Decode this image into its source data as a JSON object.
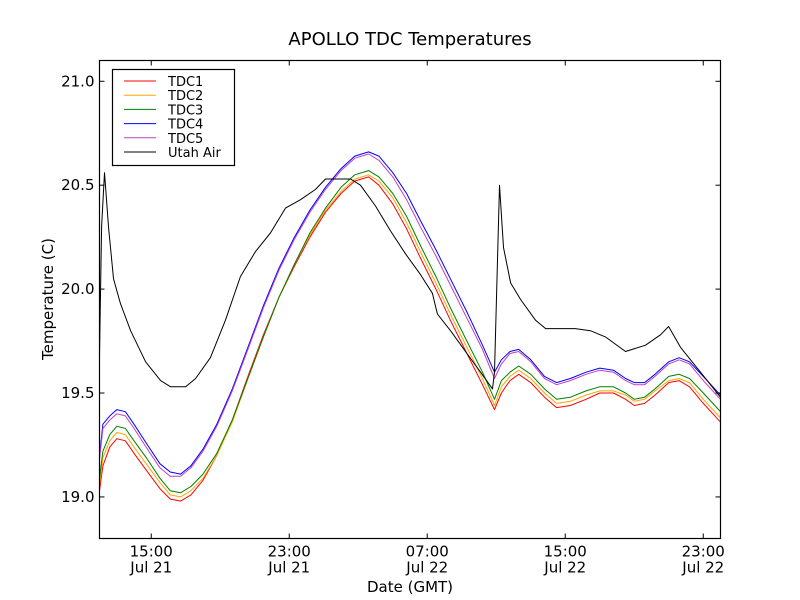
{
  "chart_data": {
    "type": "line",
    "title": "APOLLO TDC Temperatures",
    "xlabel": "Date (GMT)",
    "ylabel": "Temperature (C)",
    "x_units": "hours since Jul 21 00:00 GMT",
    "xlim": [
      12,
      48
    ],
    "ylim": [
      18.8,
      21.1
    ],
    "grid": false,
    "legend_position": "top-left",
    "x_ticks": [
      {
        "value": 15,
        "label_time": "15:00",
        "label_date": "Jul 21"
      },
      {
        "value": 23,
        "label_time": "23:00",
        "label_date": "Jul 21"
      },
      {
        "value": 31,
        "label_time": "07:00",
        "label_date": "Jul 22"
      },
      {
        "value": 39,
        "label_time": "15:00",
        "label_date": "Jul 22"
      },
      {
        "value": 47,
        "label_time": "23:00",
        "label_date": "Jul 22"
      }
    ],
    "y_ticks": [
      {
        "value": 19.0,
        "label": "19.0"
      },
      {
        "value": 19.5,
        "label": "19.5"
      },
      {
        "value": 20.0,
        "label": "20.0"
      },
      {
        "value": 20.5,
        "label": "20.5"
      },
      {
        "value": 21.0,
        "label": "21.0"
      }
    ],
    "series": [
      {
        "name": "TDC1",
        "color": "#ff0000",
        "x": [
          12.0,
          12.2,
          12.6,
          13.0,
          13.5,
          14.0,
          14.7,
          15.5,
          16.1,
          16.7,
          17.3,
          18.0,
          18.8,
          19.7,
          20.6,
          21.5,
          22.4,
          23.3,
          24.2,
          25.1,
          26.0,
          26.8,
          27.6,
          28.2,
          29.0,
          29.8,
          30.6,
          31.5,
          32.4,
          33.3,
          34.2,
          34.9,
          35.3,
          35.8,
          36.3,
          37.0,
          37.8,
          38.5,
          39.3,
          40.2,
          41.0,
          41.8,
          42.5,
          43.0,
          43.6,
          44.2,
          45.0,
          45.6,
          46.2,
          47.0,
          48.0
        ],
        "y": [
          19.03,
          19.15,
          19.24,
          19.28,
          19.27,
          19.21,
          19.13,
          19.04,
          18.99,
          18.98,
          19.01,
          19.08,
          19.2,
          19.37,
          19.58,
          19.78,
          19.96,
          20.11,
          20.25,
          20.37,
          20.46,
          20.52,
          20.54,
          20.5,
          20.41,
          20.29,
          20.15,
          20.0,
          19.84,
          19.69,
          19.54,
          19.42,
          19.5,
          19.56,
          19.59,
          19.55,
          19.48,
          19.43,
          19.44,
          19.47,
          19.5,
          19.5,
          19.47,
          19.44,
          19.45,
          19.49,
          19.55,
          19.56,
          19.53,
          19.45,
          19.36
        ]
      },
      {
        "name": "TDC2",
        "color": "#ffa500",
        "x": [
          12.0,
          12.2,
          12.6,
          13.0,
          13.5,
          14.0,
          14.7,
          15.5,
          16.1,
          16.7,
          17.3,
          18.0,
          18.8,
          19.7,
          20.6,
          21.5,
          22.4,
          23.3,
          24.2,
          25.1,
          26.0,
          26.8,
          27.6,
          28.2,
          29.0,
          29.8,
          30.6,
          31.5,
          32.4,
          33.3,
          34.2,
          34.9,
          35.3,
          35.8,
          36.3,
          37.0,
          37.8,
          38.5,
          39.3,
          40.2,
          41.0,
          41.8,
          42.5,
          43.0,
          43.6,
          44.2,
          45.0,
          45.6,
          46.2,
          47.0,
          48.0
        ],
        "y": [
          19.06,
          19.19,
          19.27,
          19.31,
          19.3,
          19.24,
          19.16,
          19.07,
          19.01,
          19.0,
          19.03,
          19.09,
          19.2,
          19.36,
          19.57,
          19.77,
          19.96,
          20.12,
          20.26,
          20.38,
          20.47,
          20.53,
          20.55,
          20.52,
          20.44,
          20.32,
          20.18,
          20.03,
          19.87,
          19.72,
          19.57,
          19.44,
          19.53,
          19.58,
          19.61,
          19.57,
          19.5,
          19.45,
          19.46,
          19.49,
          19.51,
          19.51,
          19.49,
          19.46,
          19.47,
          19.51,
          19.56,
          19.57,
          19.55,
          19.47,
          19.38
        ]
      },
      {
        "name": "TDC3",
        "color": "#008000",
        "x": [
          12.0,
          12.2,
          12.6,
          13.0,
          13.5,
          14.0,
          14.7,
          15.5,
          16.1,
          16.7,
          17.3,
          18.0,
          18.8,
          19.7,
          20.6,
          21.5,
          22.4,
          23.3,
          24.2,
          25.1,
          26.0,
          26.8,
          27.6,
          28.2,
          29.0,
          29.8,
          30.6,
          31.5,
          32.4,
          33.3,
          34.2,
          34.9,
          35.3,
          35.8,
          36.3,
          37.0,
          37.8,
          38.5,
          39.3,
          40.2,
          41.0,
          41.8,
          42.5,
          43.0,
          43.6,
          44.2,
          45.0,
          45.6,
          46.2,
          47.0,
          48.0
        ],
        "y": [
          19.09,
          19.22,
          19.3,
          19.34,
          19.33,
          19.27,
          19.19,
          19.09,
          19.03,
          19.02,
          19.05,
          19.11,
          19.21,
          19.37,
          19.57,
          19.77,
          19.96,
          20.12,
          20.27,
          20.39,
          20.49,
          20.55,
          20.57,
          20.54,
          20.46,
          20.35,
          20.21,
          20.06,
          19.9,
          19.75,
          19.6,
          19.47,
          19.56,
          19.6,
          19.63,
          19.59,
          19.52,
          19.47,
          19.48,
          19.51,
          19.53,
          19.53,
          19.5,
          19.47,
          19.48,
          19.52,
          19.58,
          19.59,
          19.57,
          19.5,
          19.41
        ]
      },
      {
        "name": "TDC4",
        "color": "#0000ff",
        "x": [
          12.0,
          12.2,
          12.6,
          13.0,
          13.5,
          14.0,
          14.7,
          15.5,
          16.1,
          16.7,
          17.3,
          18.0,
          18.8,
          19.7,
          20.6,
          21.5,
          22.4,
          23.3,
          24.2,
          25.1,
          26.0,
          26.8,
          27.6,
          28.2,
          29.0,
          29.8,
          30.6,
          31.5,
          32.4,
          33.3,
          34.2,
          34.9,
          35.3,
          35.8,
          36.3,
          37.0,
          37.8,
          38.5,
          39.3,
          40.2,
          41.0,
          41.8,
          42.5,
          43.0,
          43.6,
          44.2,
          45.0,
          45.6,
          46.2,
          47.0,
          48.0
        ],
        "y": [
          19.2,
          19.35,
          19.39,
          19.42,
          19.41,
          19.35,
          19.26,
          19.16,
          19.12,
          19.11,
          19.15,
          19.23,
          19.35,
          19.52,
          19.72,
          19.92,
          20.1,
          20.25,
          20.38,
          20.49,
          20.58,
          20.64,
          20.66,
          20.64,
          20.56,
          20.46,
          20.33,
          20.19,
          20.04,
          19.89,
          19.73,
          19.6,
          19.66,
          19.7,
          19.71,
          19.66,
          19.58,
          19.55,
          19.57,
          19.6,
          19.62,
          19.61,
          19.57,
          19.55,
          19.55,
          19.59,
          19.65,
          19.67,
          19.65,
          19.58,
          19.49
        ]
      },
      {
        "name": "TDC5",
        "color": "#bf40bf",
        "x": [
          12.0,
          12.2,
          12.6,
          13.0,
          13.5,
          14.0,
          14.7,
          15.5,
          16.1,
          16.7,
          17.3,
          18.0,
          18.8,
          19.7,
          20.6,
          21.5,
          22.4,
          23.3,
          24.2,
          25.1,
          26.0,
          26.8,
          27.6,
          28.2,
          29.0,
          29.8,
          30.6,
          31.5,
          32.4,
          33.3,
          34.2,
          34.9,
          35.3,
          35.8,
          36.3,
          37.0,
          37.8,
          38.5,
          39.3,
          40.2,
          41.0,
          41.8,
          42.5,
          43.0,
          43.6,
          44.2,
          45.0,
          45.6,
          46.2,
          47.0,
          48.0
        ],
        "y": [
          19.18,
          19.33,
          19.37,
          19.4,
          19.39,
          19.33,
          19.24,
          19.14,
          19.1,
          19.1,
          19.14,
          19.22,
          19.34,
          19.51,
          19.71,
          19.91,
          20.09,
          20.24,
          20.37,
          20.48,
          20.57,
          20.63,
          20.65,
          20.62,
          20.54,
          20.43,
          20.3,
          20.16,
          20.01,
          19.86,
          19.71,
          19.57,
          19.64,
          19.69,
          19.7,
          19.65,
          19.57,
          19.54,
          19.56,
          19.59,
          19.61,
          19.6,
          19.56,
          19.54,
          19.54,
          19.58,
          19.64,
          19.66,
          19.64,
          19.56,
          19.47
        ]
      },
      {
        "name": "Utah Air",
        "color": "#000000",
        "x": [
          12.0,
          12.12,
          12.29,
          12.52,
          12.81,
          13.22,
          13.8,
          14.67,
          15.54,
          16.12,
          16.99,
          17.57,
          18.43,
          19.3,
          20.17,
          21.04,
          21.91,
          22.78,
          23.65,
          24.52,
          25.1,
          26.55,
          27.13,
          28.0,
          28.87,
          29.74,
          30.61,
          31.3,
          31.59,
          32.35,
          33.22,
          34.09,
          34.78,
          34.9,
          35.19,
          35.42,
          35.83,
          36.41,
          37.28,
          37.86,
          38.72,
          39.59,
          40.46,
          41.33,
          42.49,
          43.65,
          44.52,
          44.99,
          45.68,
          46.84,
          48.0
        ],
        "y": [
          19.68,
          20.3,
          20.56,
          20.3,
          20.05,
          19.93,
          19.8,
          19.65,
          19.56,
          19.53,
          19.53,
          19.57,
          19.67,
          19.85,
          20.06,
          20.18,
          20.27,
          20.39,
          20.43,
          20.48,
          20.53,
          20.53,
          20.5,
          20.4,
          20.28,
          20.17,
          20.07,
          19.98,
          19.88,
          19.8,
          19.7,
          19.6,
          19.52,
          19.6,
          20.5,
          20.2,
          20.03,
          19.95,
          19.85,
          19.81,
          19.81,
          19.81,
          19.8,
          19.77,
          19.7,
          19.73,
          19.78,
          19.82,
          19.72,
          19.6,
          19.48
        ]
      }
    ]
  }
}
